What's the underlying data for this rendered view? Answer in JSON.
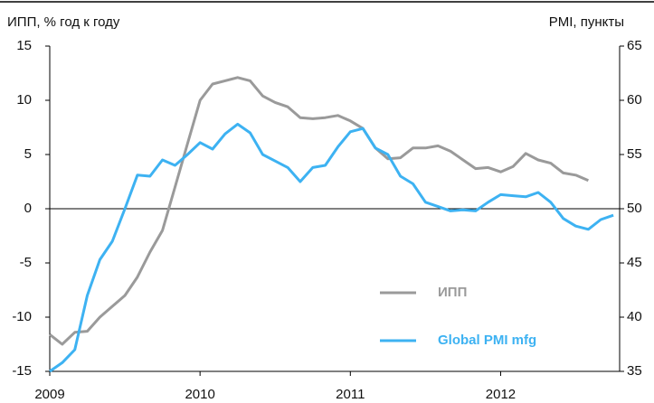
{
  "chart_data": {
    "type": "line",
    "y_label": "ИПП, % год к году",
    "y2_label": "PMI, пункты",
    "x": [
      0,
      1,
      2,
      3,
      4,
      5,
      6,
      7,
      8,
      9,
      10,
      11,
      12,
      13,
      14,
      15,
      16,
      17,
      18,
      19,
      20,
      21,
      22,
      23,
      24,
      25,
      26,
      27,
      28,
      29,
      30,
      31,
      32,
      33,
      34,
      35,
      36,
      37,
      38,
      39,
      40,
      41,
      42,
      43,
      44,
      45
    ],
    "xlim": [
      0,
      45.5
    ],
    "xticks": [
      {
        "value": 0,
        "label": "2009"
      },
      {
        "value": 12,
        "label": "2010"
      },
      {
        "value": 24,
        "label": "2011"
      },
      {
        "value": 36,
        "label": "2012"
      }
    ],
    "ylim": [
      -15,
      15
    ],
    "yticks": [
      -15,
      -10,
      -5,
      0,
      5,
      10,
      15
    ],
    "y2lim": [
      35,
      65
    ],
    "y2ticks": [
      35,
      40,
      45,
      50,
      55,
      60,
      65
    ],
    "series": [
      {
        "name": "ИПП",
        "color": "#9a9a9a",
        "values": [
          -11.6,
          -12.5,
          -11.4,
          -11.3,
          -10,
          -9,
          -8,
          -6.3,
          -4,
          -2,
          2,
          6,
          10,
          11.5,
          11.8,
          12.1,
          11.8,
          10.4,
          9.8,
          9.4,
          8.4,
          8.3,
          8.4,
          8.6,
          8.1,
          7.4,
          5.6,
          4.6,
          4.7,
          5.6,
          5.6,
          5.8,
          5.3,
          4.5,
          3.7,
          3.8,
          3.4,
          3.9,
          5.1,
          4.5,
          4.2,
          3.3,
          3.1,
          2.6,
          null,
          null
        ]
      },
      {
        "name": "Global PMI mfg",
        "color": "#3db2f2",
        "axis": "y2",
        "values": [
          35,
          35.8,
          37,
          42,
          45.3,
          47,
          50,
          53.1,
          53,
          54.5,
          54,
          55,
          56.1,
          55.5,
          56.9,
          57.8,
          57,
          55,
          54.4,
          53.8,
          52.5,
          53.8,
          54,
          55.7,
          57.1,
          57.4,
          55.6,
          55,
          53,
          52.3,
          50.6,
          50.2,
          49.8,
          49.9,
          49.8,
          50.6,
          51.3,
          51.2,
          51.1,
          51.5,
          50.6,
          49.1,
          48.4,
          48.1,
          49,
          49.4
        ]
      }
    ]
  }
}
